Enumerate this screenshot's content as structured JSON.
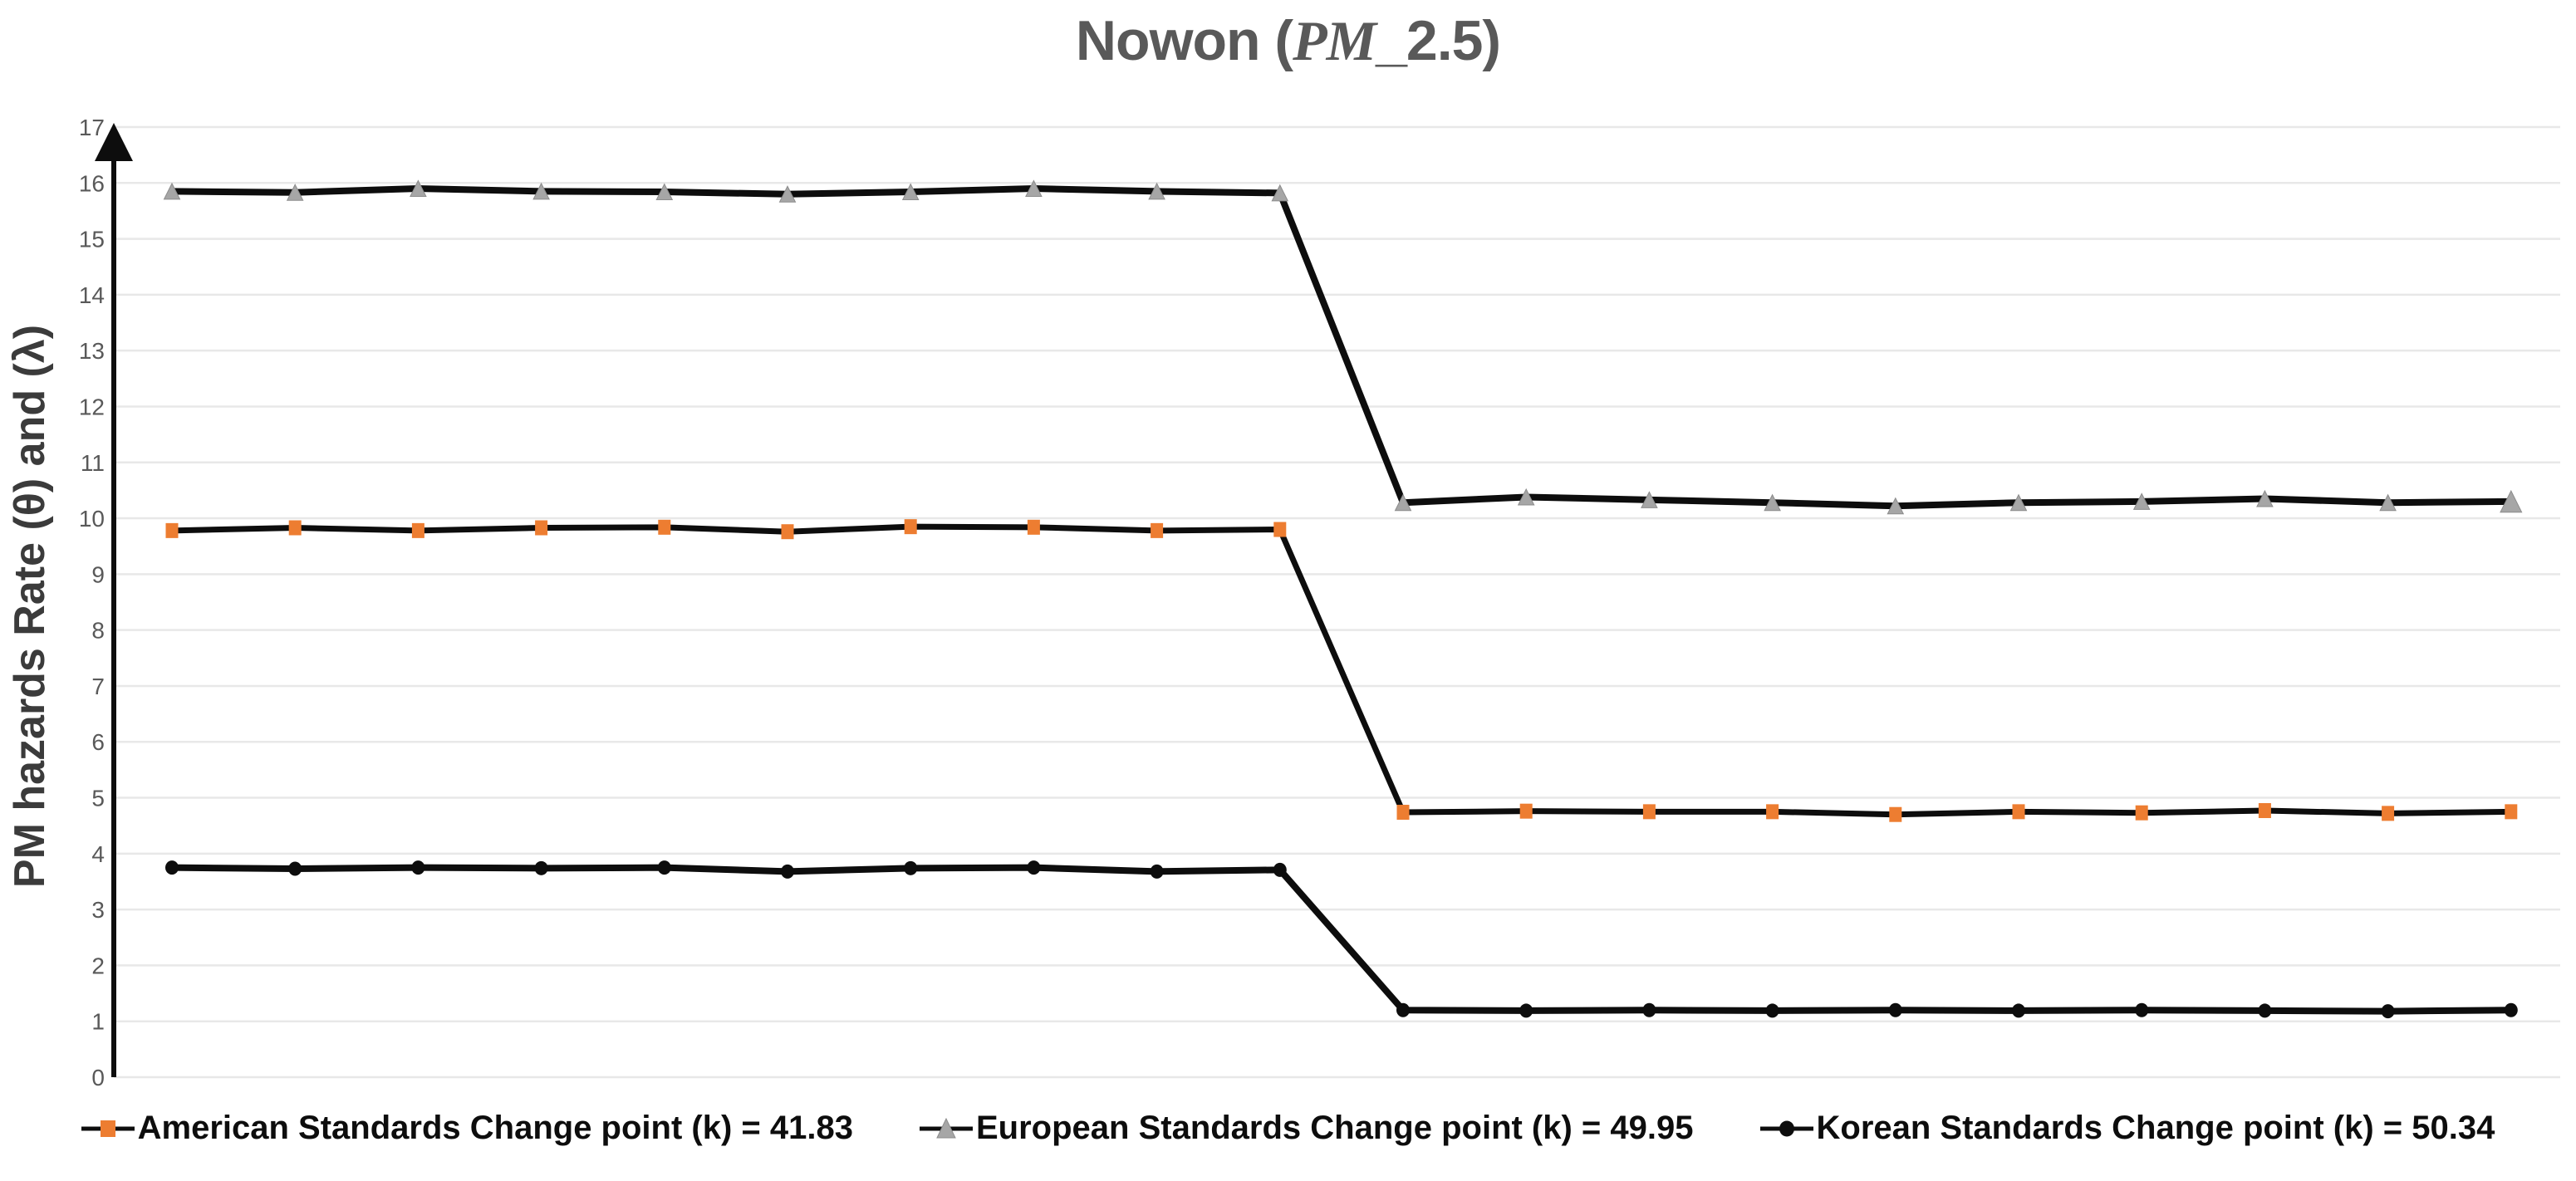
{
  "title": {
    "prefix": "Nowon (",
    "italic": "PM",
    "suffix": "_2.5)",
    "full": "Nowon (PM_2.5)",
    "color": "#595959"
  },
  "axis": {
    "tick_color": "#595959",
    "grid_color": "#e8e8e8",
    "axis_color": "#0d0d0d"
  },
  "chart_data": {
    "type": "line",
    "title": "Nowon (PM_2.5)",
    "xlabel": "",
    "ylabel": "PM hazards Rate (θ) and (λ)",
    "ylim": [
      0,
      17
    ],
    "yticks": [
      0,
      1,
      2,
      3,
      4,
      5,
      6,
      7,
      8,
      9,
      10,
      11,
      12,
      13,
      14,
      15,
      16,
      17
    ],
    "grid": true,
    "legend_position": "bottom",
    "x_axis_labels_shown": false,
    "points_per_series": 20,
    "series": [
      {
        "name": "American Standards Change point (k) = 41.83",
        "marker": "square",
        "marker_color": "#ED7D31",
        "line_color": "#0d0d0d",
        "line_width": 7,
        "values": [
          9.78,
          9.83,
          9.78,
          9.83,
          9.84,
          9.76,
          9.85,
          9.84,
          9.78,
          9.8,
          4.74,
          4.76,
          4.75,
          4.75,
          4.7,
          4.75,
          4.73,
          4.77,
          4.72,
          4.75
        ]
      },
      {
        "name": "European Standards Change point (k) = 49.95",
        "marker": "triangle",
        "marker_color": "#A6A6A6",
        "line_color": "#0d0d0d",
        "line_width": 8,
        "values": [
          15.85,
          15.83,
          15.9,
          15.85,
          15.84,
          15.8,
          15.84,
          15.9,
          15.85,
          15.82,
          10.28,
          10.38,
          10.33,
          10.28,
          10.22,
          10.28,
          10.3,
          10.35,
          10.28,
          10.3
        ]
      },
      {
        "name": "Korean Standards Change point (k) = 50.34",
        "marker": "circle",
        "marker_color": "#0d0d0d",
        "line_color": "#0d0d0d",
        "line_width": 8,
        "values": [
          3.75,
          3.73,
          3.75,
          3.74,
          3.75,
          3.68,
          3.74,
          3.75,
          3.68,
          3.71,
          1.2,
          1.19,
          1.2,
          1.19,
          1.2,
          1.19,
          1.2,
          1.19,
          1.18,
          1.2
        ]
      }
    ]
  }
}
